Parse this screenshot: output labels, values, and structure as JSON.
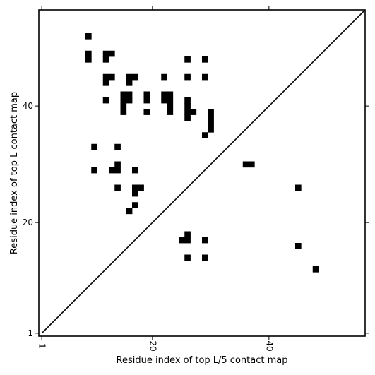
{
  "chart_data": {
    "type": "scatter",
    "xlabel": "Residue index of top L/5 contact map",
    "ylabel": "Residue index of top L contact map",
    "xlim": [
      0.5,
      56.5
    ],
    "ylim": [
      0.5,
      56.5
    ],
    "xticks": [
      1,
      20,
      40
    ],
    "yticks": [
      1,
      20,
      40
    ],
    "diagonal": true,
    "series": [
      {
        "marker": "square",
        "color": "#000000",
        "points": [
          [
            9,
            52
          ],
          [
            9,
            49
          ],
          [
            9,
            48
          ],
          [
            12,
            49
          ],
          [
            12,
            48
          ],
          [
            13,
            49
          ],
          [
            12,
            45
          ],
          [
            12,
            44
          ],
          [
            13,
            45
          ],
          [
            16,
            45
          ],
          [
            16,
            44
          ],
          [
            17,
            45
          ],
          [
            22,
            45
          ],
          [
            26,
            48
          ],
          [
            29,
            48
          ],
          [
            26,
            45
          ],
          [
            29,
            45
          ],
          [
            12,
            41
          ],
          [
            15,
            42
          ],
          [
            15,
            41
          ],
          [
            15,
            40
          ],
          [
            15,
            39
          ],
          [
            16,
            42
          ],
          [
            16,
            41
          ],
          [
            19,
            42
          ],
          [
            19,
            41
          ],
          [
            19,
            39
          ],
          [
            22,
            42
          ],
          [
            22,
            41
          ],
          [
            23,
            42
          ],
          [
            23,
            41
          ],
          [
            23,
            40
          ],
          [
            23,
            39
          ],
          [
            26,
            41
          ],
          [
            26,
            40
          ],
          [
            26,
            39
          ],
          [
            26,
            38
          ],
          [
            27,
            39
          ],
          [
            30,
            39
          ],
          [
            30,
            38
          ],
          [
            30,
            37
          ],
          [
            30,
            36
          ],
          [
            29,
            35
          ],
          [
            10,
            33
          ],
          [
            14,
            33
          ],
          [
            10,
            29
          ],
          [
            13,
            29
          ],
          [
            14,
            29
          ],
          [
            14,
            30
          ],
          [
            17,
            29
          ],
          [
            14,
            26
          ],
          [
            17,
            26
          ],
          [
            17,
            25
          ],
          [
            18,
            26
          ],
          [
            17,
            23
          ],
          [
            16,
            22
          ],
          [
            36,
            30
          ],
          [
            37,
            30
          ],
          [
            45,
            26
          ],
          [
            25,
            17
          ],
          [
            26,
            17
          ],
          [
            26,
            18
          ],
          [
            29,
            17
          ],
          [
            26,
            14
          ],
          [
            29,
            14
          ],
          [
            45,
            16
          ],
          [
            48,
            12
          ]
        ]
      }
    ]
  }
}
